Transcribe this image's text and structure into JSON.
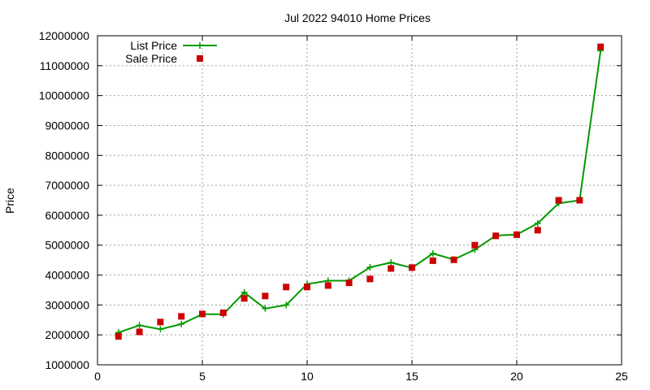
{
  "chart_data": {
    "type": "line",
    "title": "Jul 2022 94010 Home Prices",
    "xlabel": "",
    "ylabel": "Price",
    "xlim": [
      0,
      25
    ],
    "ylim": [
      1000000,
      12000000
    ],
    "x_ticks": [
      0,
      5,
      10,
      15,
      20,
      25
    ],
    "y_ticks": [
      1000000,
      2000000,
      3000000,
      4000000,
      5000000,
      6000000,
      7000000,
      8000000,
      9000000,
      10000000,
      11000000,
      12000000
    ],
    "grid": true,
    "legend_position": "top-left",
    "series": [
      {
        "name": "List Price",
        "style": "line-with-cross-markers",
        "color": "#009900",
        "x": [
          1,
          2,
          3,
          4,
          5,
          6,
          7,
          8,
          9,
          10,
          11,
          12,
          13,
          14,
          15,
          16,
          17,
          18,
          19,
          20,
          21,
          22,
          23,
          24
        ],
        "values": [
          2080000,
          2320000,
          2190000,
          2360000,
          2690000,
          2690000,
          3420000,
          2880000,
          3000000,
          3700000,
          3810000,
          3810000,
          4260000,
          4420000,
          4240000,
          4720000,
          4520000,
          4850000,
          5320000,
          5350000,
          5730000,
          6400000,
          6500000,
          11500000
        ]
      },
      {
        "name": "Sale Price",
        "style": "square-markers",
        "color": "#cc0000",
        "x": [
          1,
          2,
          3,
          4,
          5,
          6,
          7,
          8,
          9,
          10,
          11,
          12,
          13,
          14,
          15,
          16,
          17,
          18,
          19,
          20,
          21,
          22,
          23,
          24
        ],
        "values": [
          1950000,
          2100000,
          2430000,
          2620000,
          2700000,
          2740000,
          3220000,
          3300000,
          3600000,
          3600000,
          3650000,
          3740000,
          3870000,
          4220000,
          4250000,
          4480000,
          4510000,
          5000000,
          5310000,
          5350000,
          5500000,
          6500000,
          6500000,
          11630000
        ]
      }
    ]
  }
}
